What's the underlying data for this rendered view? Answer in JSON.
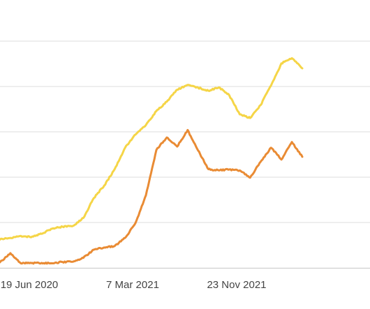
{
  "chart_data": {
    "type": "line",
    "x_tick_labels": [
      "19 Jun 2020",
      "7 Mar 2021",
      "23 Nov 2021"
    ],
    "x": [
      "2020-04-16",
      "2020-05-16",
      "2020-06-15",
      "2020-07-15",
      "2020-08-14",
      "2020-09-13",
      "2020-10-13",
      "2020-11-12",
      "2020-12-12",
      "2021-01-11",
      "2021-02-10",
      "2021-03-12",
      "2021-04-11",
      "2021-05-11",
      "2021-06-10",
      "2021-07-10",
      "2021-08-09",
      "2021-09-08",
      "2021-10-08",
      "2021-11-07",
      "2021-12-07",
      "2022-01-06",
      "2022-02-05",
      "2022-03-07",
      "2022-04-06",
      "2022-05-06",
      "2022-06-05",
      "2022-07-05",
      "2022-08-04",
      "2022-09-03"
    ],
    "ylim": [
      0,
      100
    ],
    "grid": true,
    "legend": "none",
    "series": [
      {
        "color": "#f5d547",
        "values": [
          12.5,
          13.2,
          14.1,
          13.5,
          15.0,
          17.3,
          18.2,
          18.5,
          22.0,
          30.8,
          36.3,
          43.5,
          53.0,
          58.8,
          63.0,
          69.2,
          73.3,
          78.6,
          80.7,
          79.5,
          78.1,
          79.6,
          76.1,
          67.7,
          66.1,
          71.8,
          80.4,
          90.2,
          92.5,
          88.0
        ]
      },
      {
        "color": "#e98b34",
        "values": [
          2.5,
          6.5,
          2.0,
          2.1,
          2.2,
          2.0,
          2.6,
          2.7,
          4.4,
          8.0,
          9.0,
          9.6,
          13.2,
          19.8,
          32.0,
          52.0,
          57.5,
          53.5,
          60.8,
          51.8,
          43.5,
          43.0,
          43.4,
          43.0,
          39.8,
          46.8,
          53.0,
          47.8,
          55.5,
          49.0
        ]
      }
    ]
  }
}
